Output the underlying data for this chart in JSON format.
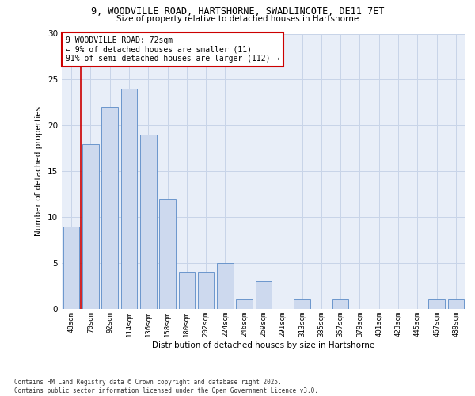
{
  "title1": "9, WOODVILLE ROAD, HARTSHORNE, SWADLINCOTE, DE11 7ET",
  "title2": "Size of property relative to detached houses in Hartshorne",
  "xlabel": "Distribution of detached houses by size in Hartshorne",
  "ylabel": "Number of detached properties",
  "categories": [
    "48sqm",
    "70sqm",
    "92sqm",
    "114sqm",
    "136sqm",
    "158sqm",
    "180sqm",
    "202sqm",
    "224sqm",
    "246sqm",
    "269sqm",
    "291sqm",
    "313sqm",
    "335sqm",
    "357sqm",
    "379sqm",
    "401sqm",
    "423sqm",
    "445sqm",
    "467sqm",
    "489sqm"
  ],
  "values": [
    9,
    18,
    22,
    24,
    19,
    12,
    4,
    4,
    5,
    1,
    3,
    0,
    1,
    0,
    1,
    0,
    0,
    0,
    0,
    1,
    1
  ],
  "bar_color": "#cdd9ee",
  "bar_edge_color": "#6b96cc",
  "vline_color": "#cc0000",
  "vline_pos": 0.5,
  "annotation_text": "9 WOODVILLE ROAD: 72sqm\n← 9% of detached houses are smaller (11)\n91% of semi-detached houses are larger (112) →",
  "annotation_box_color": "#ffffff",
  "annotation_box_edge": "#cc0000",
  "ylim": [
    0,
    30
  ],
  "yticks": [
    0,
    5,
    10,
    15,
    20,
    25,
    30
  ],
  "grid_color": "#c8d4e8",
  "bg_color": "#ffffff",
  "plot_bg_color": "#e8eef8",
  "footnote": "Contains HM Land Registry data © Crown copyright and database right 2025.\nContains public sector information licensed under the Open Government Licence v3.0."
}
